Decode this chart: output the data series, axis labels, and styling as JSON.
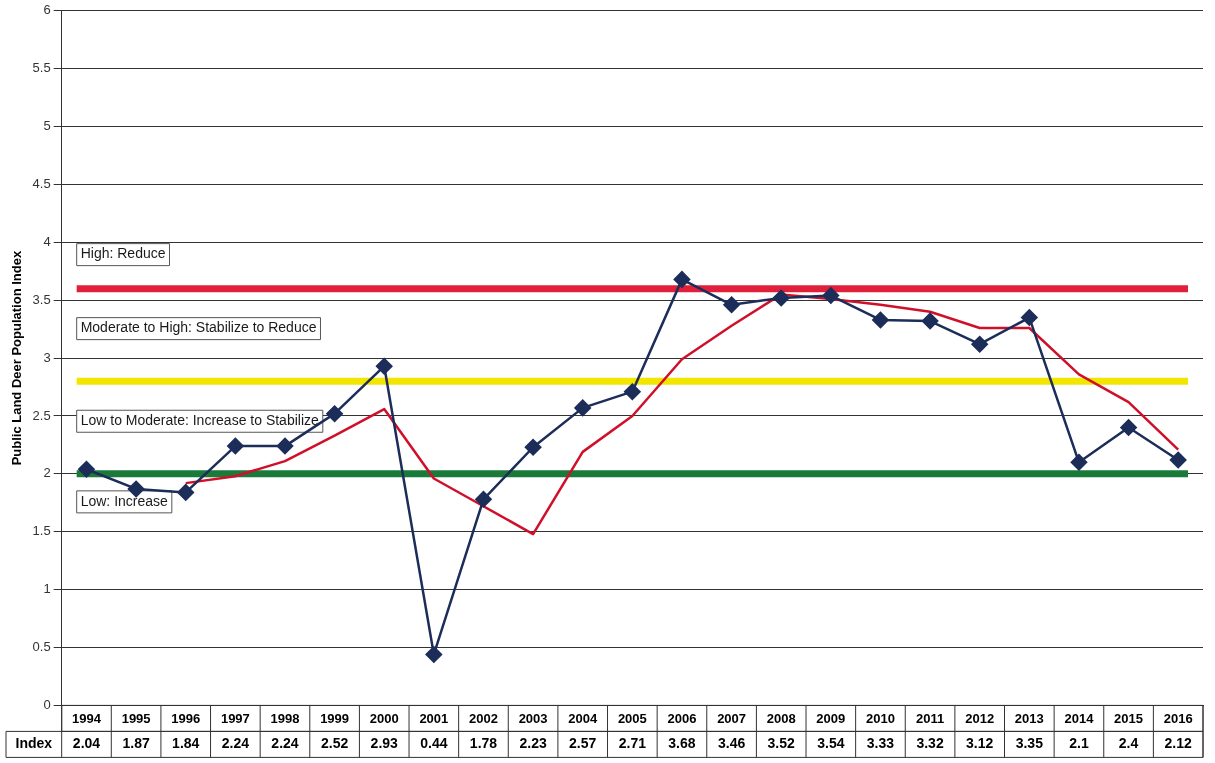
{
  "chart_data": {
    "type": "line",
    "ylabel": "Public Land Deer Population Index",
    "categories": [
      "1994",
      "1995",
      "1996",
      "1997",
      "1998",
      "1999",
      "2000",
      "2001",
      "2002",
      "2003",
      "2004",
      "2005",
      "2006",
      "2007",
      "2008",
      "2009",
      "2010",
      "2011",
      "2012",
      "2013",
      "2014",
      "2015",
      "2016"
    ],
    "series": [
      {
        "name": "Index",
        "color": "#1c2d5a",
        "marker": "diamond",
        "data_labels": true,
        "values": [
          2.04,
          1.87,
          1.84,
          2.24,
          2.24,
          2.52,
          2.93,
          0.44,
          1.78,
          2.23,
          2.57,
          2.71,
          3.68,
          3.46,
          3.52,
          3.54,
          3.33,
          3.32,
          3.12,
          3.35,
          2.1,
          2.4,
          2.12
        ]
      },
      {
        "color": "#d0102a",
        "marker": "none",
        "values": [
          null,
          null,
          1.92,
          1.98,
          2.11,
          2.33,
          2.56,
          1.96,
          1.72,
          1.48,
          2.19,
          2.5,
          2.99,
          3.28,
          3.55,
          3.51,
          3.46,
          3.4,
          3.26,
          3.26,
          2.86,
          2.62,
          2.21
        ]
      }
    ],
    "ylim": [
      0,
      6
    ],
    "yticks": [
      0,
      0.5,
      1,
      1.5,
      2,
      2.5,
      3,
      3.5,
      4,
      4.5,
      5,
      5.5,
      6
    ],
    "grid": "y",
    "legend": false,
    "ref_lines": [
      {
        "axis": "y",
        "value": 3.6,
        "color": "#e0203a"
      },
      {
        "axis": "y",
        "value": 2.8,
        "color": "#f2e600"
      },
      {
        "axis": "y",
        "value": 2.0,
        "color": "#1a7a3a"
      }
    ],
    "annotations": [
      "High: Reduce",
      "Moderate to High: Stabilize to Reduce",
      "Low to Moderate: Increase to Stabilize",
      "Low: Increase"
    ]
  }
}
